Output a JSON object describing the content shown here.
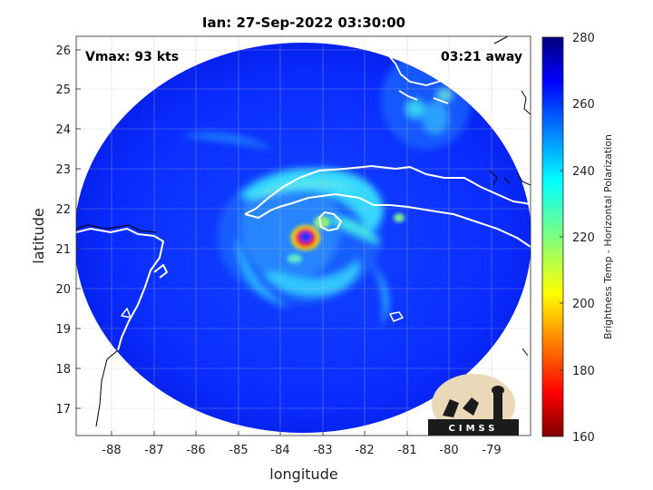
{
  "title": "Ian: 27-Sep-2022 03:30:00",
  "annotations": {
    "vmax": "Vmax: 93 kts",
    "away": "03:21 away"
  },
  "axes": {
    "xlabel": "longitude",
    "ylabel": "latitude",
    "xlim": [
      -88.9,
      -78.4
    ],
    "ylim": [
      16.35,
      26.35
    ],
    "xticks": [
      "-88",
      "-87",
      "-86",
      "-85",
      "-84",
      "-83",
      "-82",
      "-81",
      "-80",
      "-79"
    ],
    "yticks": [
      "26",
      "25",
      "24",
      "23",
      "22",
      "21",
      "20",
      "19",
      "18",
      "17"
    ],
    "grid": true
  },
  "colorbar": {
    "label": "Brightness Temp - Horizontal Polarization",
    "ticks": [
      "280",
      "260",
      "240",
      "220",
      "200",
      "180",
      "160"
    ],
    "range": [
      160,
      280
    ],
    "colormap": "jet"
  },
  "logo": {
    "text": "CIMSS"
  },
  "storm": {
    "center_lon": -83.55,
    "center_lat": 21.1
  },
  "colors": {
    "background_disk": "#0a2dff",
    "eyewall": "#e8181a",
    "coast": "#ffffff",
    "land": "#000000"
  }
}
